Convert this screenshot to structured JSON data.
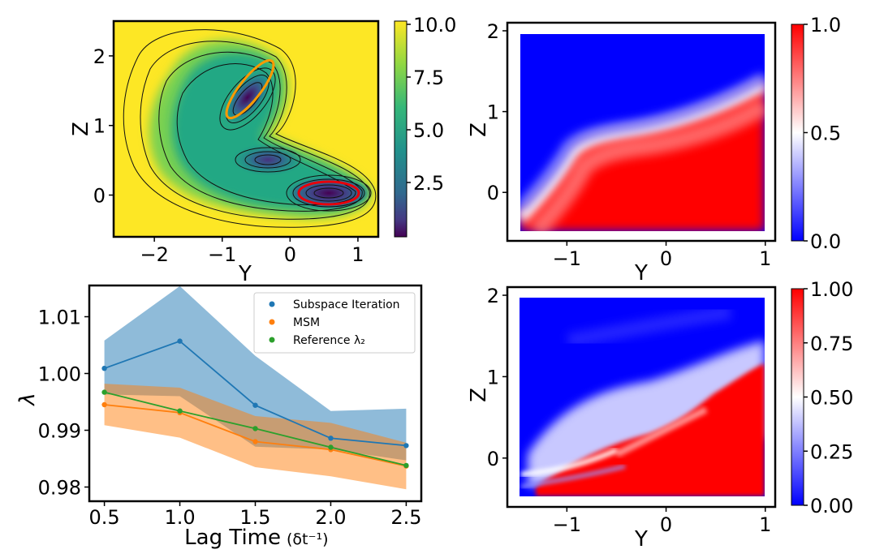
{
  "chart_data": [
    {
      "type": "heatmap",
      "id": "potential",
      "xlabel": "Y",
      "ylabel": "Z",
      "xticks": [
        "−2",
        "−1",
        "0",
        "1"
      ],
      "yticks": [
        "0",
        "1",
        "2"
      ],
      "xlim": [
        -2.6,
        1.3
      ],
      "ylim": [
        -0.6,
        2.5
      ],
      "colorbar": {
        "ticks": [
          "10.0",
          "7.5",
          "5.0",
          "2.5"
        ],
        "range": [
          0,
          10
        ],
        "colormap": "viridis"
      },
      "annotations": [
        "orange contour around upper-left minimum (~-0.45, 1.4)",
        "red contour around lower-right minimum (~0.65, 0.0)"
      ]
    },
    {
      "type": "heatmap",
      "id": "committor-reference",
      "xlabel": "Y",
      "ylabel": "Z",
      "xticks": [
        "−1",
        "0",
        "1"
      ],
      "yticks": [
        "0",
        "1",
        "2"
      ],
      "xlim": [
        -1.6,
        1.1
      ],
      "ylim": [
        -0.6,
        2.1
      ],
      "colorbar": {
        "ticks": [
          "1.0",
          "0.5",
          "0.0"
        ],
        "range": [
          0,
          1
        ],
        "colormap": "bwr"
      }
    },
    {
      "type": "line",
      "id": "eigenvalue-vs-lag",
      "xlabel": "Lag Time",
      "xlabel_unit": "(δt⁻¹)",
      "ylabel": "λ",
      "x": [
        0.5,
        1.0,
        1.5,
        2.0,
        2.5
      ],
      "xticks": [
        "0.5",
        "1.0",
        "1.5",
        "2.0",
        "2.5"
      ],
      "yticks": [
        "1.01",
        "1.00",
        "0.99",
        "0.98"
      ],
      "xlim": [
        0.4,
        2.6
      ],
      "ylim": [
        0.9775,
        1.0155
      ],
      "legend_position": "top-right",
      "series": [
        {
          "name": "Subspace Iteration",
          "color": "#1f77b4",
          "values": [
            1.0009,
            1.0057,
            0.9944,
            0.9886,
            0.9873
          ],
          "band_low": [
            0.9963,
            0.996,
            0.9871,
            0.9866,
            0.9847
          ],
          "band_high": [
            1.0058,
            1.0154,
            1.0031,
            0.9934,
            0.9938
          ]
        },
        {
          "name": "MSM",
          "color": "#ff7f0e",
          "values": [
            0.9945,
            0.9931,
            0.988,
            0.9866,
            0.9837
          ],
          "band_low": [
            0.9909,
            0.9887,
            0.9835,
            0.9819,
            0.9796
          ],
          "band_high": [
            0.9982,
            0.9975,
            0.9925,
            0.9913,
            0.9878
          ]
        },
        {
          "name": "Reference λ₂",
          "color": "#2ca02c",
          "values": [
            0.9967,
            0.9934,
            0.9903,
            0.987,
            0.9838
          ]
        }
      ]
    },
    {
      "type": "heatmap",
      "id": "committor-learned",
      "xlabel": "Y",
      "ylabel": "Z",
      "xticks": [
        "−1",
        "0",
        "1"
      ],
      "yticks": [
        "0",
        "1",
        "2"
      ],
      "xlim": [
        -1.6,
        1.1
      ],
      "ylim": [
        -0.6,
        2.1
      ],
      "colorbar": {
        "ticks": [
          "1.00",
          "0.75",
          "0.50",
          "0.25",
          "0.00"
        ],
        "range": [
          0,
          1
        ],
        "colormap": "bwr"
      }
    }
  ],
  "icons": {
    "legend_marker": "dot-icon"
  }
}
